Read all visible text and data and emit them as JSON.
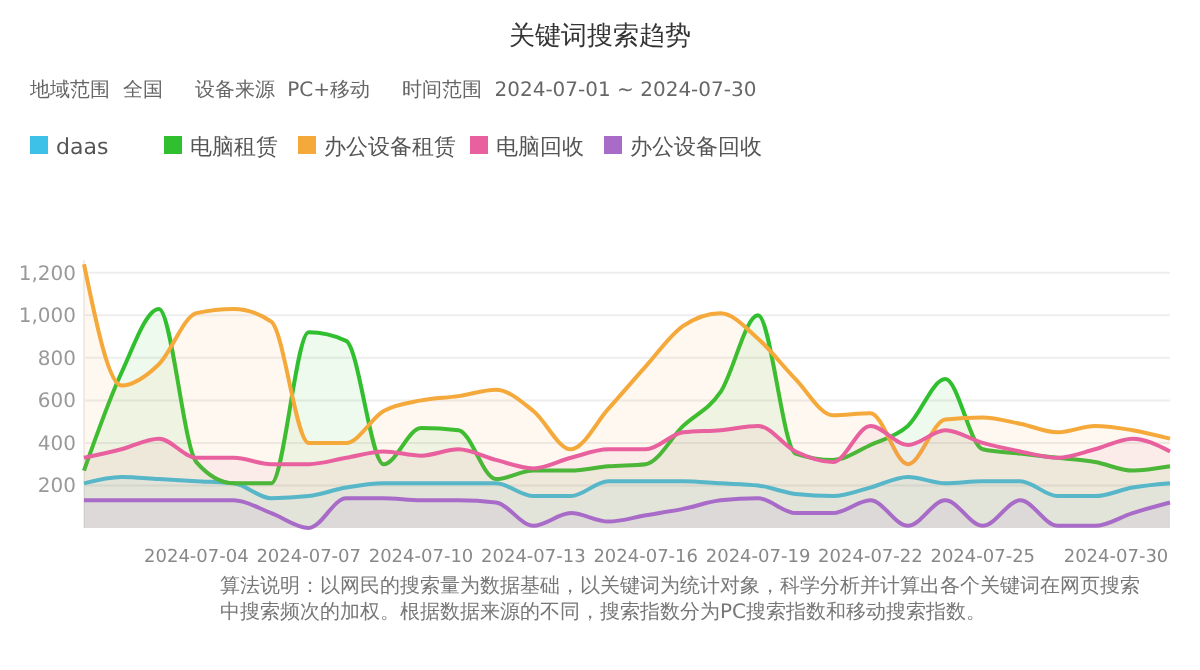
{
  "chart_data": {
    "type": "area",
    "title": "关键词搜索趋势",
    "subtitle": "地域范围  全国     设备来源  PC+移动     时间范围  2024-07-01 ~ 2024-07-30",
    "x": [
      "2024-07-01",
      "2024-07-02",
      "2024-07-03",
      "2024-07-04",
      "2024-07-05",
      "2024-07-06",
      "2024-07-07",
      "2024-07-08",
      "2024-07-09",
      "2024-07-10",
      "2024-07-11",
      "2024-07-12",
      "2024-07-13",
      "2024-07-14",
      "2024-07-15",
      "2024-07-16",
      "2024-07-17",
      "2024-07-18",
      "2024-07-19",
      "2024-07-20",
      "2024-07-21",
      "2024-07-22",
      "2024-07-23",
      "2024-07-24",
      "2024-07-25",
      "2024-07-26",
      "2024-07-27",
      "2024-07-28",
      "2024-07-29",
      "2024-07-30"
    ],
    "series": [
      {
        "name": "daas",
        "color": "#3ec1e8",
        "values": [
          210,
          240,
          230,
          220,
          210,
          140,
          150,
          190,
          210,
          210,
          210,
          210,
          150,
          150,
          220,
          220,
          220,
          210,
          200,
          160,
          150,
          190,
          240,
          210,
          220,
          220,
          150,
          150,
          190,
          210
        ]
      },
      {
        "name": "电脑租赁",
        "color": "#2fbf2f",
        "values": [
          270,
          730,
          1030,
          310,
          210,
          210,
          920,
          880,
          300,
          470,
          460,
          230,
          270,
          270,
          290,
          300,
          480,
          640,
          1000,
          350,
          320,
          390,
          480,
          700,
          370,
          350,
          330,
          310,
          270,
          290
        ]
      },
      {
        "name": "办公设备租赁",
        "color": "#f5a93b",
        "values": [
          1240,
          670,
          770,
          1010,
          1030,
          970,
          400,
          400,
          550,
          600,
          620,
          650,
          550,
          370,
          560,
          760,
          950,
          1010,
          890,
          700,
          530,
          540,
          300,
          510,
          520,
          490,
          450,
          480,
          460,
          420
        ]
      },
      {
        "name": "电脑回收",
        "color": "#e8609e",
        "values": [
          330,
          370,
          420,
          330,
          330,
          300,
          300,
          330,
          360,
          340,
          370,
          320,
          280,
          330,
          370,
          370,
          450,
          460,
          480,
          360,
          310,
          480,
          390,
          460,
          400,
          360,
          330,
          370,
          420,
          360
        ]
      },
      {
        "name": "办公设备回收",
        "color": "#a86bc8",
        "values": [
          130,
          130,
          130,
          130,
          130,
          70,
          0,
          140,
          140,
          130,
          130,
          120,
          10,
          70,
          30,
          60,
          90,
          130,
          140,
          70,
          70,
          130,
          10,
          130,
          10,
          130,
          10,
          10,
          70,
          120
        ]
      }
    ],
    "xlim": [
      "2024-07-01",
      "2024-07-30"
    ],
    "xticks": [
      "2024-07-04",
      "2024-07-07",
      "2024-07-10",
      "2024-07-13",
      "2024-07-16",
      "2024-07-19",
      "2024-07-22",
      "2024-07-25",
      "2024-07-30"
    ],
    "ylim": [
      0,
      1260
    ],
    "yticks": [
      200,
      400,
      600,
      800,
      {
        "value": 1000,
        "label": "1,000"
      },
      {
        "value": 1200,
        "label": "1,200"
      }
    ],
    "grid": "y",
    "legend": "top left",
    "marker": "none",
    "line_style": "solid",
    "annotations": [
      "算法说明：以网民的搜索量为数据基础，以关键词为统计对象，科学分析并计算出各个关键词在网页搜索中搜索频次的加权。根据数据来源的不同，搜索指数分为PC搜索指数和移动搜索指数。"
    ]
  }
}
